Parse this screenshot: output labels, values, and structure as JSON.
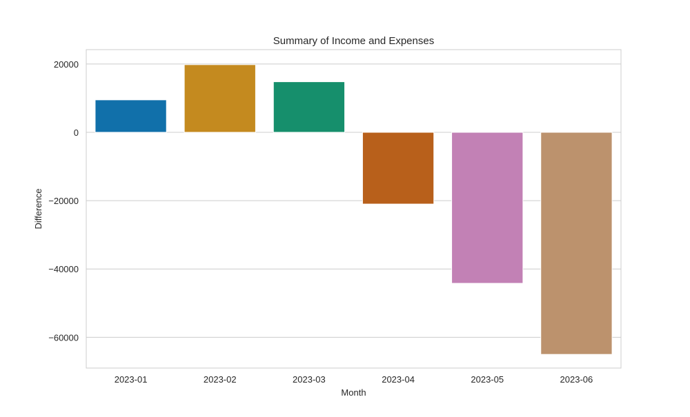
{
  "chart_data": {
    "type": "bar",
    "title": "Summary of Income and Expenses",
    "xlabel": "Month",
    "ylabel": "Difference",
    "categories": [
      "2023-01",
      "2023-02",
      "2023-03",
      "2023-04",
      "2023-05",
      "2023-06"
    ],
    "values": [
      9500,
      19800,
      14800,
      -21000,
      -44200,
      -65000
    ],
    "colors": [
      "#1170aa",
      "#c48a1f",
      "#168f6c",
      "#b8601b",
      "#c281b5",
      "#bc926d"
    ],
    "ylim": [
      -69000,
      24200
    ],
    "yticks": [
      20000,
      0,
      -20000,
      -40000,
      -60000
    ],
    "ytick_labels": [
      "20000",
      "0",
      "−20000",
      "−40000",
      "−60000"
    ],
    "grid": true,
    "grid_axis": "y",
    "grid_color": "#cccccc",
    "frame_color": "#cccccc",
    "legend": false
  }
}
